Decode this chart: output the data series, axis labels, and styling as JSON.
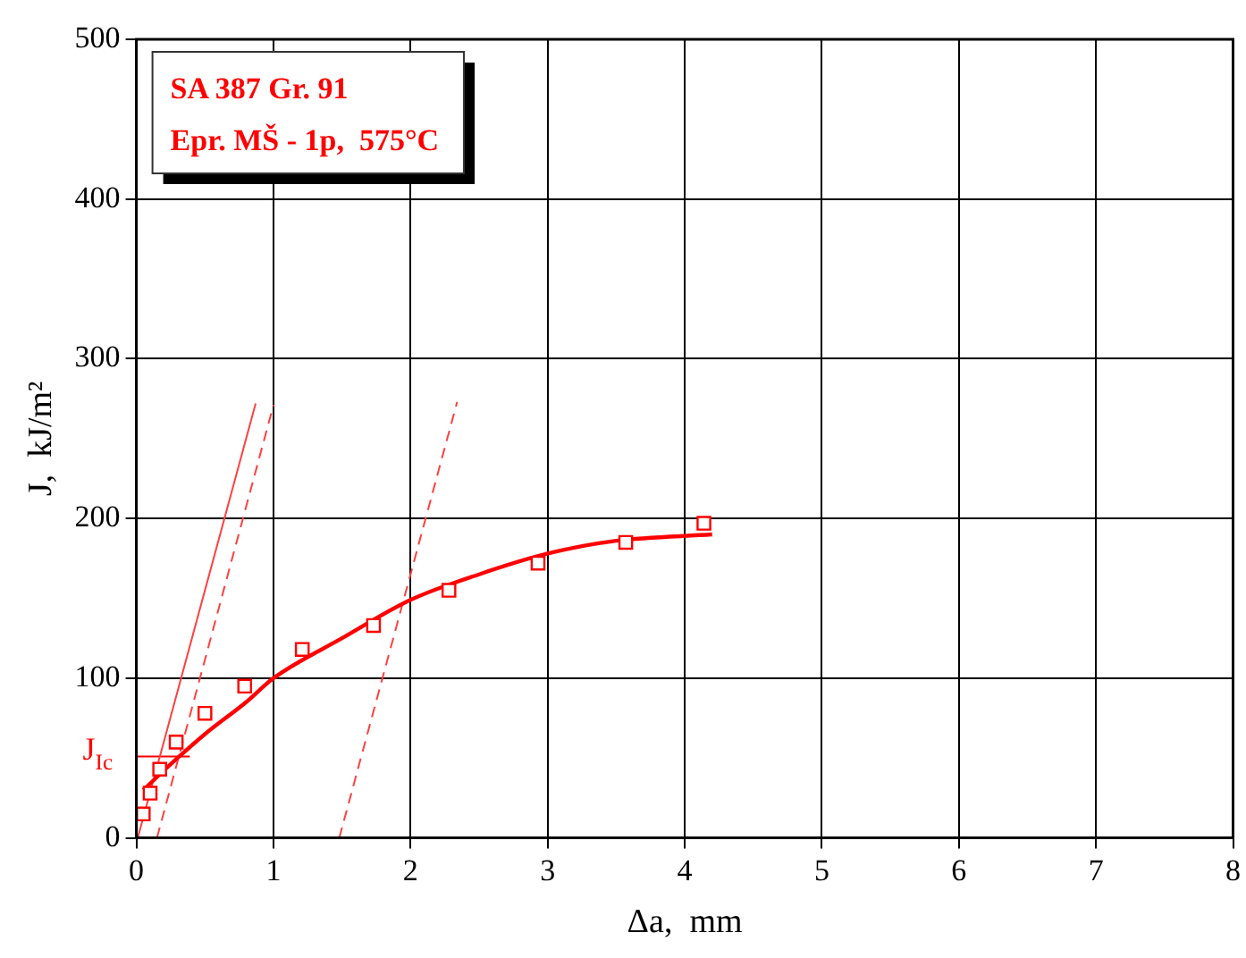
{
  "chart_data": {
    "type": "scatter",
    "xlabel": "Δa,  mm",
    "ylabel": "J,  kJ/m²",
    "xlim": [
      0,
      8
    ],
    "xticks": [
      0,
      1,
      2,
      3,
      4,
      5,
      6,
      7,
      8
    ],
    "ylim": [
      0,
      500
    ],
    "yticks": [
      0,
      100,
      200,
      300,
      400,
      500
    ],
    "grid": true,
    "legend": false,
    "annotations": [
      "SA 387 Gr. 91",
      "Epr. MŠ - 1p,  575°C",
      {
        "text": "J$_{Ic}$",
        "x": 0,
        "y": 51
      }
    ],
    "series": [
      {
        "marker": "square",
        "color": "#ff0000",
        "x": [
          0.05,
          0.1,
          0.17,
          0.29,
          0.5,
          0.79,
          1.21,
          1.73,
          2.28,
          2.93,
          3.57,
          4.14
        ],
        "values": [
          15,
          28,
          43,
          60,
          78,
          95,
          118,
          133,
          155,
          172,
          185,
          197
        ]
      },
      {
        "type": "line",
        "marker": "none",
        "line_style": "solid",
        "color": "#ff0000",
        "x": [
          0.05,
          0.3,
          0.5,
          0.8,
          1,
          1.5,
          2,
          2.5,
          3,
          3.5,
          4.2
        ],
        "values": [
          30,
          50,
          65,
          85,
          100,
          125,
          149,
          165,
          178,
          186,
          190
        ]
      },
      {
        "type": "line",
        "marker": "none",
        "line_style": "solid",
        "color": "#ff4040",
        "x": [
          0.01,
          0.87
        ],
        "values": [
          0,
          272
        ]
      },
      {
        "type": "line",
        "marker": "none",
        "line_style": "dashed",
        "color": "#ff4040",
        "x": [
          0.15,
          1.0
        ],
        "values": [
          0,
          271
        ]
      },
      {
        "type": "line",
        "marker": "none",
        "line_style": "dashed",
        "color": "#ff4040",
        "x": [
          1.48,
          2.34
        ],
        "values": [
          0,
          273
        ]
      },
      {
        "type": "line",
        "marker": "none",
        "line_style": "solid",
        "color": "#ff0000",
        "x": [
          0,
          0.39
        ],
        "values": [
          51,
          51
        ]
      }
    ]
  }
}
